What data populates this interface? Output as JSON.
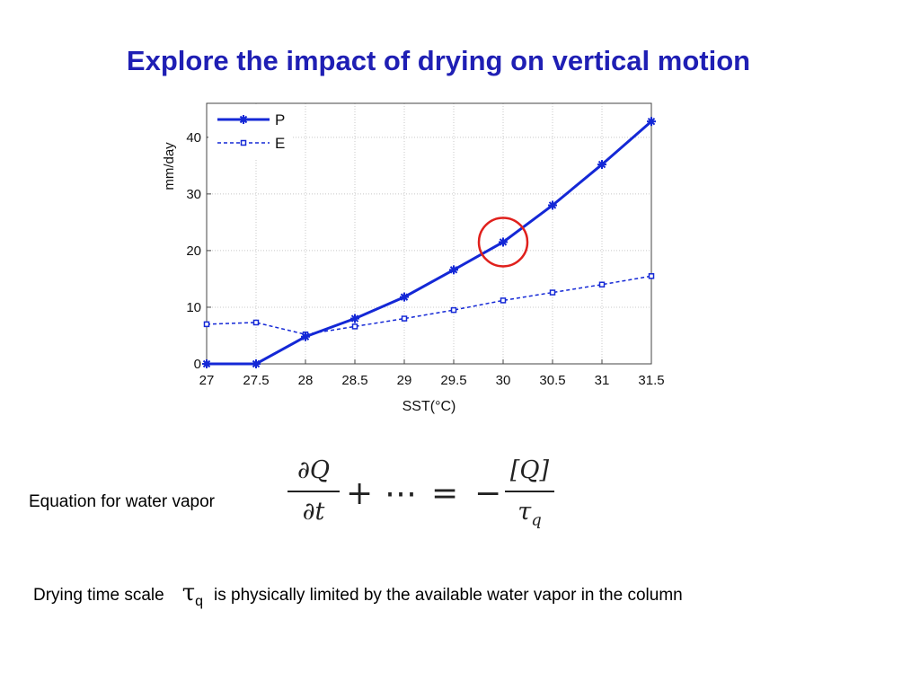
{
  "slide": {
    "title": "Explore the impact of drying on vertical motion",
    "equation_label": "Equation for water vapor",
    "equation": {
      "lhs_num": "∂Q",
      "lhs_den": "∂t",
      "plus": "+",
      "dots": "⋯",
      "equals": "=",
      "minus": "−",
      "rhs_num": "[Q]",
      "rhs_den": "τ",
      "rhs_den_sub": "q"
    },
    "drying_prefix": "Drying time scale",
    "tau_symbol": "τ",
    "tau_sub": "q",
    "drying_suffix": "is physically limited by the available water vapor in the column"
  },
  "chart_data": {
    "type": "line",
    "xlabel": "SST(°C)",
    "ylabel": "mm/day",
    "x": [
      27,
      27.5,
      28,
      28.5,
      29,
      29.5,
      30,
      30.5,
      31,
      31.5
    ],
    "x_ticks": [
      "27",
      "27.5",
      "28",
      "28.5",
      "29",
      "29.5",
      "30",
      "30.5",
      "31",
      "31.5"
    ],
    "y_ticks": [
      "0",
      "10",
      "20",
      "30",
      "40"
    ],
    "xlim": [
      27,
      31.5
    ],
    "ylim": [
      0,
      46
    ],
    "grid": true,
    "legend_position": "top-left",
    "series": [
      {
        "name": "P",
        "color": "#1428d6",
        "style": "solid",
        "marker": "asterisk",
        "values": [
          0,
          0,
          4.8,
          8,
          11.8,
          16.6,
          21.5,
          28,
          35.2,
          42.8
        ]
      },
      {
        "name": "E",
        "color": "#1428d6",
        "style": "dashed",
        "marker": "square",
        "values": [
          7,
          7.3,
          5.2,
          6.6,
          8,
          9.5,
          11.2,
          12.6,
          14,
          15.5
        ]
      }
    ],
    "annotation": {
      "type": "circle",
      "color": "#e0201c",
      "x": 30,
      "y": 21.5
    }
  }
}
